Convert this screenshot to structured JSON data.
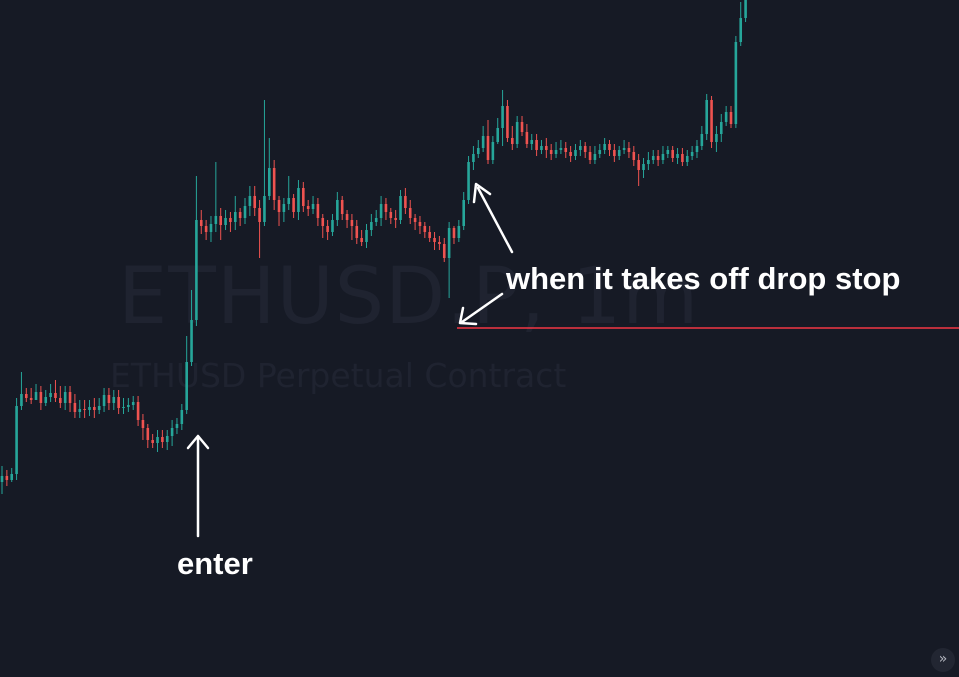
{
  "watermark": {
    "symbol": "ETHUSD.P, 1m",
    "description": "ETHUSD Perpetual Contract"
  },
  "annotations": {
    "stop_text": "when it takes off drop stop",
    "enter_text": "enter"
  },
  "scroll_button": {
    "glyph": "»"
  },
  "colors": {
    "background": "#161a25",
    "up": "#26a69a",
    "down": "#ef5350",
    "stop_line": "#f23645",
    "annotation": "#ffffff",
    "watermark": "#1f2330"
  },
  "chart_data": {
    "type": "candlestick",
    "symbol": "ETHUSD.P",
    "interval": "1m",
    "stop_level": 328,
    "candles": [
      [
        482,
        476,
        466,
        494
      ],
      [
        476,
        480,
        470,
        486
      ],
      [
        480,
        474,
        468,
        482
      ],
      [
        474,
        406,
        398,
        480
      ],
      [
        406,
        394,
        372,
        410
      ],
      [
        394,
        398,
        388,
        402
      ],
      [
        398,
        400,
        388,
        404
      ],
      [
        400,
        392,
        384,
        396
      ],
      [
        392,
        403,
        386,
        410
      ],
      [
        403,
        397,
        390,
        406
      ],
      [
        397,
        393,
        384,
        402
      ],
      [
        393,
        398,
        380,
        402
      ],
      [
        398,
        403,
        386,
        408
      ],
      [
        403,
        392,
        386,
        410
      ],
      [
        392,
        403,
        386,
        412
      ],
      [
        403,
        412,
        394,
        418
      ],
      [
        412,
        409,
        400,
        418
      ],
      [
        409,
        410,
        400,
        418
      ],
      [
        410,
        407,
        400,
        416
      ],
      [
        407,
        410,
        398,
        418
      ],
      [
        410,
        406,
        398,
        414
      ],
      [
        406,
        395,
        388,
        412
      ],
      [
        395,
        403,
        388,
        410
      ],
      [
        403,
        397,
        390,
        410
      ],
      [
        397,
        408,
        390,
        414
      ],
      [
        408,
        407,
        398,
        414
      ],
      [
        407,
        405,
        398,
        412
      ],
      [
        405,
        402,
        396,
        410
      ],
      [
        402,
        420,
        396,
        426
      ],
      [
        420,
        428,
        414,
        440
      ],
      [
        428,
        440,
        424,
        448
      ],
      [
        440,
        443,
        434,
        448
      ],
      [
        443,
        437,
        430,
        452
      ],
      [
        437,
        442,
        430,
        448
      ],
      [
        442,
        436,
        430,
        450
      ],
      [
        436,
        428,
        420,
        446
      ],
      [
        428,
        424,
        418,
        434
      ],
      [
        424,
        410,
        404,
        430
      ],
      [
        410,
        362,
        336,
        414
      ],
      [
        362,
        320,
        290,
        366
      ],
      [
        320,
        220,
        176,
        326
      ],
      [
        220,
        226,
        210,
        234
      ],
      [
        226,
        232,
        220,
        240
      ],
      [
        232,
        224,
        216,
        242
      ],
      [
        224,
        216,
        162,
        232
      ],
      [
        216,
        225,
        208,
        240
      ],
      [
        225,
        218,
        210,
        230
      ],
      [
        218,
        222,
        212,
        232
      ],
      [
        222,
        212,
        196,
        230
      ],
      [
        212,
        218,
        208,
        226
      ],
      [
        218,
        206,
        198,
        224
      ],
      [
        206,
        196,
        186,
        216
      ],
      [
        196,
        208,
        186,
        216
      ],
      [
        208,
        222,
        200,
        258
      ],
      [
        222,
        196,
        100,
        226
      ],
      [
        196,
        168,
        138,
        200
      ],
      [
        168,
        200,
        160,
        210
      ],
      [
        200,
        212,
        196,
        226
      ],
      [
        212,
        204,
        198,
        222
      ],
      [
        204,
        198,
        176,
        210
      ],
      [
        198,
        212,
        194,
        218
      ],
      [
        212,
        188,
        180,
        220
      ],
      [
        188,
        206,
        182,
        212
      ],
      [
        206,
        209,
        200,
        216
      ],
      [
        209,
        204,
        196,
        214
      ],
      [
        204,
        218,
        198,
        226
      ],
      [
        218,
        226,
        214,
        238
      ],
      [
        226,
        232,
        220,
        240
      ],
      [
        232,
        220,
        214,
        236
      ],
      [
        220,
        200,
        192,
        226
      ],
      [
        200,
        214,
        196,
        220
      ],
      [
        214,
        220,
        210,
        228
      ],
      [
        220,
        226,
        214,
        240
      ],
      [
        226,
        238,
        220,
        244
      ],
      [
        238,
        242,
        230,
        246
      ],
      [
        242,
        230,
        224,
        248
      ],
      [
        230,
        222,
        214,
        236
      ],
      [
        222,
        218,
        210,
        226
      ],
      [
        218,
        204,
        196,
        226
      ],
      [
        204,
        212,
        198,
        220
      ],
      [
        212,
        218,
        208,
        224
      ],
      [
        218,
        220,
        210,
        228
      ],
      [
        220,
        196,
        190,
        224
      ],
      [
        196,
        208,
        188,
        214
      ],
      [
        208,
        218,
        200,
        224
      ],
      [
        218,
        222,
        214,
        230
      ],
      [
        222,
        226,
        216,
        234
      ],
      [
        226,
        232,
        222,
        238
      ],
      [
        232,
        238,
        226,
        242
      ],
      [
        238,
        242,
        232,
        250
      ],
      [
        242,
        244,
        236,
        250
      ],
      [
        244,
        258,
        238,
        262
      ],
      [
        258,
        228,
        222,
        298
      ],
      [
        228,
        238,
        226,
        244
      ],
      [
        238,
        226,
        220,
        242
      ],
      [
        226,
        200,
        192,
        230
      ],
      [
        200,
        162,
        156,
        204
      ],
      [
        162,
        154,
        146,
        170
      ],
      [
        154,
        148,
        140,
        158
      ],
      [
        148,
        136,
        126,
        152
      ],
      [
        136,
        160,
        120,
        164
      ],
      [
        160,
        142,
        136,
        164
      ],
      [
        142,
        128,
        118,
        144
      ],
      [
        128,
        106,
        90,
        146
      ],
      [
        106,
        138,
        100,
        142
      ],
      [
        138,
        144,
        126,
        150
      ],
      [
        144,
        122,
        116,
        148
      ],
      [
        122,
        132,
        116,
        136
      ],
      [
        132,
        144,
        124,
        148
      ],
      [
        144,
        140,
        134,
        150
      ],
      [
        140,
        150,
        134,
        156
      ],
      [
        150,
        146,
        140,
        154
      ],
      [
        146,
        150,
        138,
        158
      ],
      [
        150,
        154,
        144,
        160
      ],
      [
        154,
        150,
        142,
        158
      ],
      [
        150,
        148,
        140,
        154
      ],
      [
        148,
        152,
        142,
        158
      ],
      [
        152,
        156,
        146,
        162
      ],
      [
        156,
        150,
        144,
        160
      ],
      [
        150,
        146,
        140,
        156
      ],
      [
        146,
        152,
        142,
        158
      ],
      [
        152,
        160,
        146,
        164
      ],
      [
        160,
        154,
        146,
        164
      ],
      [
        154,
        150,
        144,
        158
      ],
      [
        150,
        144,
        138,
        154
      ],
      [
        144,
        150,
        140,
        156
      ],
      [
        150,
        156,
        144,
        162
      ],
      [
        156,
        150,
        146,
        160
      ],
      [
        150,
        148,
        140,
        154
      ],
      [
        148,
        152,
        142,
        158
      ],
      [
        152,
        160,
        146,
        166
      ],
      [
        160,
        170,
        154,
        186
      ],
      [
        170,
        164,
        158,
        178
      ],
      [
        164,
        160,
        152,
        170
      ],
      [
        160,
        156,
        150,
        164
      ],
      [
        156,
        160,
        150,
        166
      ],
      [
        160,
        154,
        146,
        164
      ],
      [
        154,
        150,
        146,
        158
      ],
      [
        150,
        158,
        146,
        162
      ],
      [
        158,
        154,
        148,
        164
      ],
      [
        154,
        162,
        148,
        166
      ],
      [
        162,
        156,
        150,
        166
      ],
      [
        156,
        152,
        146,
        160
      ],
      [
        152,
        146,
        140,
        158
      ],
      [
        146,
        134,
        126,
        150
      ],
      [
        134,
        100,
        94,
        140
      ],
      [
        100,
        142,
        96,
        148
      ],
      [
        142,
        134,
        126,
        152
      ],
      [
        134,
        122,
        114,
        142
      ],
      [
        122,
        112,
        106,
        126
      ],
      [
        112,
        124,
        106,
        128
      ],
      [
        124,
        42,
        36,
        128
      ],
      [
        42,
        18,
        2,
        46
      ],
      [
        18,
        0,
        -4,
        22
      ]
    ]
  }
}
